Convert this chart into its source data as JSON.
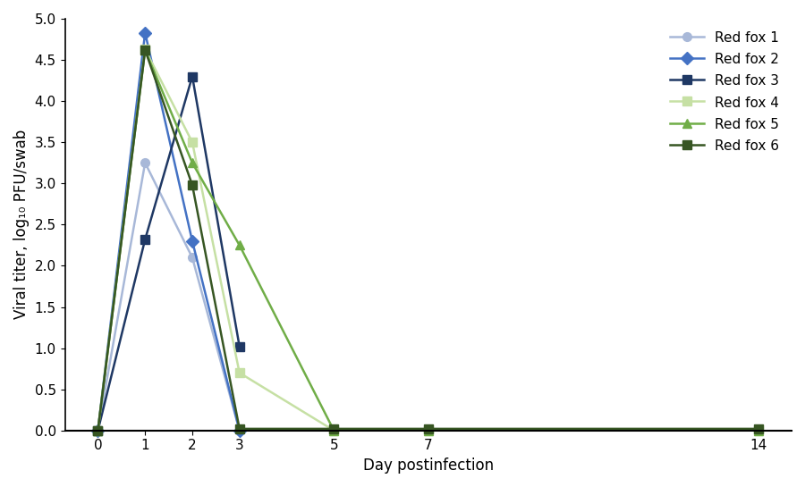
{
  "x_ticks": [
    0,
    1,
    2,
    3,
    5,
    7,
    14
  ],
  "series": [
    {
      "label": "Red fox 1",
      "x": [
        0,
        1,
        2,
        3
      ],
      "y": [
        0,
        3.25,
        2.1,
        0
      ],
      "color": "#a8b8d8",
      "marker": "o",
      "linewidth": 1.8,
      "markersize": 7
    },
    {
      "label": "Red fox 2",
      "x": [
        0,
        1,
        2,
        3
      ],
      "y": [
        0,
        4.83,
        2.3,
        0
      ],
      "color": "#4472c4",
      "marker": "D",
      "linewidth": 1.8,
      "markersize": 7
    },
    {
      "label": "Red fox 3",
      "x": [
        0,
        1,
        2,
        3
      ],
      "y": [
        0,
        2.32,
        4.3,
        1.02
      ],
      "color": "#1f3864",
      "marker": "s",
      "linewidth": 1.8,
      "markersize": 7
    },
    {
      "label": "Red fox 4",
      "x": [
        0,
        1,
        2,
        3,
        5,
        7,
        14
      ],
      "y": [
        0,
        4.63,
        3.5,
        0.7,
        0,
        0,
        0
      ],
      "color": "#c6e0a4",
      "marker": "s",
      "linewidth": 1.8,
      "markersize": 7
    },
    {
      "label": "Red fox 5",
      "x": [
        0,
        1,
        2,
        3,
        5,
        7,
        14
      ],
      "y": [
        0,
        4.62,
        3.25,
        2.25,
        0,
        0,
        0
      ],
      "color": "#70ad47",
      "marker": "^",
      "linewidth": 1.8,
      "markersize": 7
    },
    {
      "label": "Red fox 6",
      "x": [
        0,
        1,
        2,
        3,
        5,
        7,
        14
      ],
      "y": [
        0,
        4.62,
        2.98,
        0.02,
        0.02,
        0.02,
        0.02
      ],
      "color": "#375623",
      "marker": "s",
      "linewidth": 1.8,
      "markersize": 7
    }
  ],
  "xlabel": "Day postinfection",
  "ylabel": "Viral titer, log₁₀ PFU/swab",
  "ylim": [
    0,
    5
  ],
  "yticks": [
    0,
    0.5,
    1,
    1.5,
    2,
    2.5,
    3,
    3.5,
    4,
    4.5,
    5
  ],
  "title": "",
  "background_color": "#ffffff",
  "legend_fontsize": 11,
  "axis_fontsize": 12,
  "tick_fontsize": 11
}
